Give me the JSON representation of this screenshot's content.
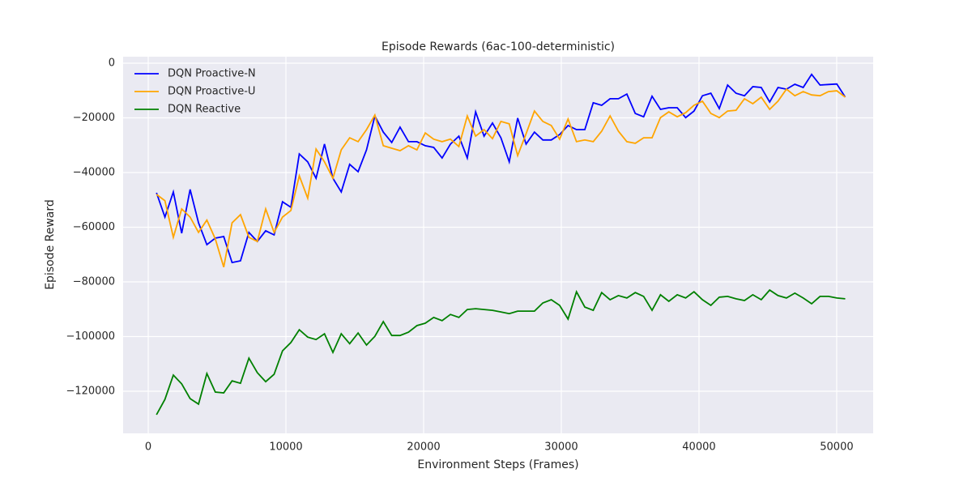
{
  "chart_data": {
    "type": "line",
    "title": "Episode Rewards (6ac-100-deterministic)",
    "x_label": "Environment Steps (Frames)",
    "y_label": "Episode Reward",
    "x": [
      600,
      1210,
      1820,
      2430,
      3040,
      3650,
      4260,
      4870,
      5480,
      6090,
      6700,
      7310,
      7920,
      8530,
      9140,
      9750,
      10360,
      10970,
      11580,
      12190,
      12800,
      13410,
      14020,
      14630,
      15240,
      15850,
      16460,
      17070,
      17680,
      18290,
      18900,
      19510,
      20120,
      20730,
      21340,
      21950,
      22560,
      23170,
      23780,
      24390,
      25000,
      25610,
      26220,
      26830,
      27440,
      28050,
      28660,
      29270,
      29880,
      30490,
      31100,
      31710,
      32320,
      32930,
      33540,
      34150,
      34760,
      35370,
      35980,
      36590,
      37200,
      37810,
      38420,
      39030,
      39640,
      40250,
      40860,
      41470,
      42080,
      42690,
      43300,
      43910,
      44520,
      45130,
      45740,
      46350,
      46960,
      47570,
      48180,
      48790,
      49400,
      50010,
      50620
    ],
    "series": [
      {
        "name": "DQN Proactive-N",
        "color": "#0000ff",
        "values": [
          -47400,
          -56300,
          -47100,
          -62200,
          -46200,
          -58400,
          -66400,
          -64000,
          -63400,
          -72900,
          -72300,
          -61900,
          -65200,
          -61300,
          -62800,
          -50700,
          -52700,
          -33200,
          -36100,
          -42100,
          -29600,
          -42100,
          -47100,
          -37000,
          -39700,
          -31700,
          -19300,
          -25200,
          -29000,
          -23400,
          -28700,
          -28700,
          -30200,
          -30800,
          -34700,
          -29600,
          -26700,
          -34700,
          -17800,
          -26700,
          -21900,
          -27300,
          -36100,
          -20100,
          -29600,
          -25200,
          -28100,
          -28100,
          -26100,
          -22800,
          -24300,
          -24300,
          -14500,
          -15400,
          -13000,
          -13000,
          -11300,
          -18400,
          -19600,
          -12100,
          -16900,
          -16300,
          -16300,
          -19900,
          -17500,
          -11900,
          -11000,
          -16600,
          -8000,
          -11000,
          -11900,
          -8600,
          -8900,
          -14200,
          -8900,
          -9500,
          -7700,
          -8900,
          -4100,
          -8000,
          -7800,
          -7600,
          -12400
        ]
      },
      {
        "name": "DQN Proactive-U",
        "color": "#ffa500",
        "values": [
          -48000,
          -50300,
          -63700,
          -53300,
          -56300,
          -61900,
          -57400,
          -64300,
          -74600,
          -58400,
          -55400,
          -63700,
          -65200,
          -53300,
          -61900,
          -56300,
          -53900,
          -41200,
          -49400,
          -31400,
          -36100,
          -42100,
          -31700,
          -27300,
          -28700,
          -24300,
          -19000,
          -30200,
          -31100,
          -32000,
          -30200,
          -31700,
          -25500,
          -27800,
          -28700,
          -27800,
          -30500,
          -19300,
          -26700,
          -24300,
          -27600,
          -21300,
          -22200,
          -33800,
          -25800,
          -17500,
          -21300,
          -22800,
          -27800,
          -20400,
          -28700,
          -28100,
          -28700,
          -24900,
          -19300,
          -24900,
          -28700,
          -29300,
          -27300,
          -27300,
          -19900,
          -17800,
          -19600,
          -18100,
          -15400,
          -13900,
          -18400,
          -19900,
          -17500,
          -17200,
          -13000,
          -14800,
          -12400,
          -16900,
          -13900,
          -9500,
          -11900,
          -10400,
          -11600,
          -11900,
          -10400,
          -10100,
          -12400
        ]
      },
      {
        "name": "DQN Reactive",
        "color": "#008000",
        "values": [
          -128600,
          -123000,
          -114100,
          -117300,
          -122700,
          -124700,
          -113500,
          -120300,
          -120600,
          -116200,
          -117100,
          -107900,
          -113200,
          -116500,
          -113800,
          -105200,
          -102200,
          -97500,
          -100200,
          -101100,
          -99000,
          -105800,
          -99000,
          -102600,
          -98700,
          -103100,
          -99900,
          -94500,
          -99600,
          -99600,
          -98400,
          -96000,
          -95100,
          -93000,
          -94200,
          -91900,
          -93000,
          -90100,
          -89800,
          -90100,
          -90400,
          -91000,
          -91600,
          -90700,
          -90700,
          -90700,
          -87700,
          -86500,
          -88600,
          -93600,
          -83600,
          -89200,
          -90400,
          -83900,
          -86500,
          -85000,
          -85900,
          -83900,
          -85300,
          -90400,
          -84700,
          -87100,
          -84700,
          -85900,
          -83600,
          -86500,
          -88600,
          -85600,
          -85300,
          -86200,
          -86800,
          -84700,
          -86500,
          -83000,
          -85000,
          -85900,
          -84100,
          -85900,
          -88000,
          -85300,
          -85300,
          -85900,
          -86200
        ]
      }
    ],
    "xlim": [
      -1825,
      52650
    ],
    "xticks": [
      0,
      10000,
      20000,
      30000,
      40000,
      50000
    ],
    "ylim": [
      -135400,
      2370
    ],
    "yticks": [
      {
        "value": -120000,
        "label": "−120000"
      },
      {
        "value": -100000,
        "label": "−100000"
      },
      {
        "value": -80000,
        "label": "−80000"
      },
      {
        "value": -60000,
        "label": "−60000"
      },
      {
        "value": -40000,
        "label": "−40000"
      },
      {
        "value": -20000,
        "label": "−20000"
      },
      0
    ],
    "grid": true,
    "legend": "upper-left"
  }
}
